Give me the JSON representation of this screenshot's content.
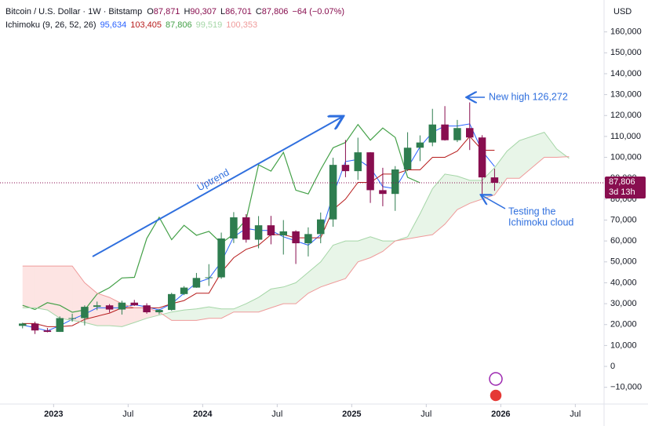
{
  "header": {
    "symbol": "Bitcoin / U.S. Dollar · 1W · Bitstamp",
    "ohlc": [
      {
        "key": "O",
        "value": "87,871"
      },
      {
        "key": "H",
        "value": "90,307"
      },
      {
        "key": "L",
        "value": "86,701"
      },
      {
        "key": "C",
        "value": "87,806"
      }
    ],
    "change": "−64 (−0.07%)",
    "indicator": "Ichimoku (9, 26, 52, 26)",
    "indicator_values": [
      "95,634",
      "103,405",
      "87,806",
      "99,519",
      "100,353"
    ],
    "currency": "USD"
  },
  "chart_data": {
    "type": "candlestick",
    "x": [
      "2022-10",
      "2022-11",
      "2022-12",
      "2023-01",
      "2023-02",
      "2023-03",
      "2023-04",
      "2023-05",
      "2023-06",
      "2023-07",
      "2023-08",
      "2023-09",
      "2023-10",
      "2023-11",
      "2023-12",
      "2024-01",
      "2024-02",
      "2024-03",
      "2024-04",
      "2024-05",
      "2024-06",
      "2024-07",
      "2024-08",
      "2024-09",
      "2024-10",
      "2024-11",
      "2024-12",
      "2025-01",
      "2025-02",
      "2025-03",
      "2025-04",
      "2025-05",
      "2025-06",
      "2025-07",
      "2025-08",
      "2025-09",
      "2025-10",
      "2025-11",
      "2025-12"
    ],
    "open": [
      19400,
      20500,
      17200,
      16500,
      23100,
      23100,
      28500,
      29200,
      27200,
      30500,
      29200,
      25900,
      27000,
      34600,
      37700,
      42300,
      42600,
      61200,
      71300,
      60600,
      67500,
      62700,
      64600,
      58900,
      63300,
      70300,
      96400,
      93400,
      102400,
      84300,
      82500,
      94200,
      104600,
      107100,
      115700,
      108200,
      114000,
      109500,
      90400
    ],
    "high": [
      20900,
      21400,
      18400,
      23900,
      25200,
      29200,
      31000,
      29800,
      31400,
      31800,
      30200,
      27400,
      35200,
      38400,
      44700,
      48900,
      64000,
      73800,
      72800,
      71900,
      72000,
      70000,
      65100,
      66500,
      73600,
      99800,
      108300,
      109400,
      102500,
      95000,
      95800,
      112000,
      110500,
      123200,
      124500,
      117900,
      126272,
      110600,
      94600
    ],
    "low": [
      18200,
      15500,
      16300,
      16500,
      21400,
      19600,
      26900,
      25800,
      24800,
      28900,
      25200,
      24900,
      26600,
      34100,
      37600,
      38500,
      41900,
      59000,
      59200,
      56500,
      58400,
      53500,
      49000,
      52600,
      58900,
      66800,
      90500,
      89200,
      78200,
      76600,
      74400,
      93400,
      98200,
      105300,
      108000,
      107300,
      103500,
      80600,
      84000
    ],
    "close": [
      20500,
      17200,
      16500,
      23100,
      23100,
      28500,
      29200,
      27200,
      30500,
      29200,
      25900,
      27000,
      34600,
      37700,
      42300,
      42600,
      61200,
      71300,
      60600,
      67500,
      62700,
      64600,
      58900,
      63300,
      70300,
      96400,
      93400,
      102400,
      84300,
      82500,
      94200,
      104600,
      107100,
      115700,
      108200,
      114000,
      109500,
      90400,
      87806
    ],
    "up_color": "#2e7d4f",
    "down_color": "#880e4f",
    "series": [
      {
        "color": "#2962ff",
        "values": [
          19800,
          18500,
          17000,
          19500,
          22500,
          25000,
          28000,
          28000,
          28000,
          29500,
          28500,
          27000,
          30000,
          35000,
          40000,
          42000,
          50000,
          62000,
          66000,
          65000,
          65000,
          62000,
          60000,
          58000,
          63000,
          82000,
          98000,
          99000,
          95000,
          86000,
          85000,
          95000,
          105000,
          112000,
          115000,
          115000,
          116000,
          103000,
          95634
        ]
      },
      {
        "color": "#b71c1c",
        "values": [
          20500,
          20500,
          19000,
          19000,
          19500,
          22500,
          24000,
          25500,
          28000,
          28000,
          28000,
          28000,
          30000,
          31500,
          35000,
          35000,
          45000,
          52000,
          56000,
          58000,
          63000,
          63000,
          61500,
          61500,
          61500,
          75000,
          80000,
          88000,
          88000,
          92000,
          92000,
          94000,
          94000,
          100000,
          100000,
          103000,
          110000,
          103405,
          103405
        ]
      },
      {
        "color": "#43a047",
        "x": [
          "2022-10",
          "2022-11",
          "2022-12",
          "2023-01",
          "2023-02",
          "2023-03",
          "2023-04",
          "2023-05",
          "2023-06",
          "2023-07",
          "2023-08",
          "2023-09",
          "2023-10",
          "2023-11",
          "2023-12",
          "2024-01",
          "2024-02",
          "2024-03",
          "2024-04",
          "2024-05",
          "2024-06",
          "2024-07",
          "2024-08",
          "2024-09",
          "2024-10",
          "2024-11",
          "2024-12",
          "2025-01",
          "2025-02",
          "2025-03",
          "2025-04",
          "2025-05",
          "2025-06"
        ],
        "values": [
          29200,
          27200,
          30500,
          29200,
          25900,
          27000,
          34600,
          37700,
          42300,
          42600,
          61200,
          71300,
          60600,
          67500,
          62700,
          64600,
          58900,
          63300,
          70300,
          96400,
          93400,
          102400,
          84300,
          82500,
          94200,
          104600,
          107100,
          115700,
          108200,
          114000,
          109500,
          90400,
          87806
        ]
      },
      {
        "color": "#a5d6a7",
        "x": [
          "2022-10",
          "2022-11",
          "2022-12",
          "2023-01",
          "2023-02",
          "2023-03",
          "2023-04",
          "2023-05",
          "2023-06",
          "2023-07",
          "2023-08",
          "2023-09",
          "2023-10",
          "2023-11",
          "2023-12",
          "2024-01",
          "2024-02",
          "2024-03",
          "2024-04",
          "2024-05",
          "2024-06",
          "2024-07",
          "2024-08",
          "2024-09",
          "2024-10",
          "2024-11",
          "2024-12",
          "2025-01",
          "2025-02",
          "2025-03",
          "2025-04",
          "2025-05",
          "2025-06",
          "2025-07",
          "2025-08",
          "2025-09",
          "2025-10",
          "2025-11",
          "2025-12",
          "2026-01",
          "2026-02",
          "2026-03",
          "2026-04",
          "2026-05",
          "2026-06"
        ],
        "values": [
          28000,
          28000,
          27000,
          23000,
          22000,
          21000,
          19500,
          19500,
          19000,
          21000,
          23000,
          24500,
          26000,
          27000,
          27500,
          28500,
          27500,
          27500,
          30000,
          33000,
          37000,
          38000,
          40000,
          45000,
          50000,
          58000,
          60000,
          60000,
          62000,
          60000,
          60000,
          62000,
          73000,
          85000,
          92000,
          91000,
          89000,
          89000,
          95000,
          103000,
          108000,
          110000,
          112000,
          104000,
          99519
        ]
      },
      {
        "color": "#ef9a9a",
        "x": [
          "2022-10",
          "2022-11",
          "2022-12",
          "2023-01",
          "2023-02",
          "2023-03",
          "2023-04",
          "2023-05",
          "2023-06",
          "2023-07",
          "2023-08",
          "2023-09",
          "2023-10",
          "2023-11",
          "2023-12",
          "2024-01",
          "2024-02",
          "2024-03",
          "2024-04",
          "2024-05",
          "2024-06",
          "2024-07",
          "2024-08",
          "2024-09",
          "2024-10",
          "2024-11",
          "2024-12",
          "2025-01",
          "2025-02",
          "2025-03",
          "2025-04",
          "2025-05",
          "2025-06",
          "2025-07",
          "2025-08",
          "2025-09",
          "2025-10",
          "2025-11",
          "2025-12",
          "2026-01",
          "2026-02",
          "2026-03",
          "2026-04",
          "2026-05",
          "2026-06"
        ],
        "values": [
          48000,
          48000,
          48000,
          48000,
          48000,
          40000,
          35000,
          33000,
          30000,
          28000,
          28000,
          26000,
          22000,
          22000,
          22000,
          23000,
          23000,
          26000,
          26000,
          26000,
          28000,
          30000,
          30000,
          35000,
          38000,
          40000,
          42000,
          50000,
          52000,
          55000,
          60000,
          61000,
          62000,
          63000,
          68000,
          75000,
          78000,
          80000,
          82000,
          90000,
          90000,
          95000,
          100000,
          100000,
          100353
        ]
      }
    ],
    "cloud_colors": [
      "rgba(76,175,80,0.13)",
      "rgba(244,67,54,0.14)"
    ],
    "xlim": [
      "2022-09",
      "2026-09"
    ],
    "xticks": [
      {
        "value": "2023-01",
        "label": "2023"
      },
      {
        "value": "2023-07",
        "label": "Jul"
      },
      {
        "value": "2024-01",
        "label": "2024"
      },
      {
        "value": "2024-07",
        "label": "Jul"
      },
      {
        "value": "2025-01",
        "label": "2025"
      },
      {
        "value": "2025-07",
        "label": "Jul"
      },
      {
        "value": "2026-01",
        "label": "2026"
      },
      {
        "value": "2026-07",
        "label": "Jul"
      }
    ],
    "ylim": [
      -18000,
      164000
    ],
    "yticks": [
      {
        "value": -10000,
        "label": "−10,000"
      },
      0,
      {
        "value": 10000,
        "label": "10,000"
      },
      {
        "value": 20000,
        "label": "20,000"
      },
      {
        "value": 30000,
        "label": "30,000"
      },
      {
        "value": 40000,
        "label": "40,000"
      },
      {
        "value": 50000,
        "label": "50,000"
      },
      {
        "value": 60000,
        "label": "60,000"
      },
      {
        "value": 70000,
        "label": "70,000"
      },
      {
        "value": 80000,
        "label": "80,000"
      },
      {
        "value": 90000,
        "label": "90,000"
      },
      {
        "value": 100000,
        "label": "100,000"
      },
      {
        "value": 110000,
        "label": "110,000"
      },
      {
        "value": 120000,
        "label": "120,000"
      },
      {
        "value": 130000,
        "label": "130,000"
      },
      {
        "value": 140000,
        "label": "140,000"
      },
      {
        "value": 150000,
        "label": "150,000"
      },
      {
        "value": 160000,
        "label": "160,000"
      }
    ],
    "grid": false,
    "last_price": {
      "value": 87806,
      "label": "87,806",
      "countdown": "3d 13h"
    },
    "annotations": [
      "Uptrend",
      "New high 126,272",
      "Testing the",
      "Ichimoku cloud"
    ]
  }
}
